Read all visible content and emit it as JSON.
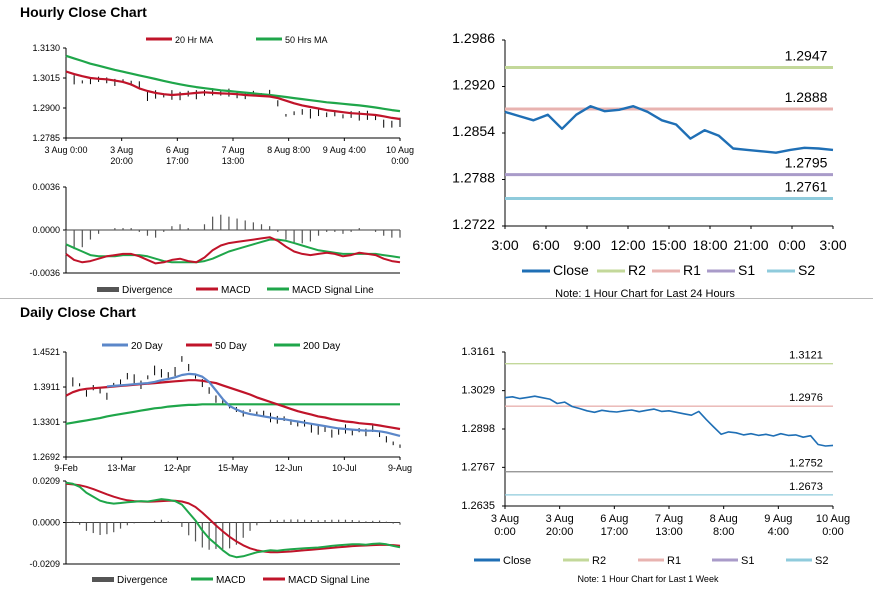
{
  "sections": {
    "hourly_title": "Hourly Close Chart",
    "daily_title": "Daily Close Chart"
  },
  "colors": {
    "close": "#1f6fb5",
    "ma20": "#c0142a",
    "ma50": "#1fa64a",
    "ma200": "#1fa64a",
    "ma20_daily": "#5b87c9",
    "ma50_daily": "#c0142a",
    "r2": "#c3d89a",
    "r1": "#e8b3b0",
    "s1": "#a99bc9",
    "s2": "#8fcbdc",
    "divergence": "#555555"
  },
  "chart_data": [
    {
      "id": "hourly_price",
      "type": "line",
      "title": "",
      "x_ticks": [
        "3 Aug 0:00",
        "3 Aug\n20:00",
        "6 Aug\n17:00",
        "7 Aug\n13:00",
        "8 Aug 8:00",
        "9 Aug 4:00",
        "10 Aug\n0:00"
      ],
      "ylim": [
        1.2785,
        1.313
      ],
      "y_ticks": [
        "1.3130",
        "1.3015",
        "1.2900",
        "1.2785"
      ],
      "series": [
        {
          "name": "Close",
          "values": [
            1.3005,
            1.3008,
            1.3,
            1.3004,
            1.301,
            1.3006,
            1.2998,
            1.3003,
            1.2995,
            1.299,
            1.2945,
            1.2952,
            1.2948,
            1.295,
            1.2946,
            1.2955,
            1.2951,
            1.2958,
            1.2962,
            1.2957,
            1.2959,
            1.295,
            1.2948,
            1.2955,
            1.295,
            1.296,
            1.2918,
            1.2872,
            1.288,
            1.2885,
            1.2878,
            1.2884,
            1.2874,
            1.2879,
            1.2868,
            1.2875,
            1.287,
            1.2872,
            1.2865,
            1.284,
            1.2838,
            1.2845
          ]
        },
        {
          "name": "20 Hr MA",
          "values": [
            1.304,
            1.303,
            1.3022,
            1.3015,
            1.3012,
            1.301,
            1.3005,
            1.3,
            1.299,
            1.2975,
            1.2965,
            1.2958,
            1.2953,
            1.295,
            1.2952,
            1.2955,
            1.2958,
            1.296,
            1.2958,
            1.2956,
            1.2955,
            1.2953,
            1.295,
            1.2948,
            1.2946,
            1.2944,
            1.2938,
            1.2928,
            1.2918,
            1.291,
            1.2904,
            1.2898,
            1.2892,
            1.2888,
            1.2884,
            1.288,
            1.2878,
            1.2876,
            1.2873,
            1.2868,
            1.2862,
            1.2858
          ]
        },
        {
          "name": "50 Hrs MA",
          "values": [
            1.31,
            1.309,
            1.308,
            1.307,
            1.3062,
            1.3054,
            1.3046,
            1.3039,
            1.3032,
            1.3025,
            1.3018,
            1.3011,
            1.3004,
            1.2997,
            1.2991,
            1.2985,
            1.298,
            1.2976,
            1.2972,
            1.2968,
            1.2965,
            1.2962,
            1.2959,
            1.2956,
            1.2953,
            1.295,
            1.2946,
            1.2942,
            1.2938,
            1.2934,
            1.293,
            1.2926,
            1.2922,
            1.2919,
            1.2916,
            1.2913,
            1.291,
            1.2906,
            1.2902,
            1.2897,
            1.2892,
            1.2888
          ]
        }
      ],
      "legend": [
        "20 Hr MA",
        "50 Hrs MA"
      ]
    },
    {
      "id": "hourly_macd",
      "type": "line",
      "ylim": [
        -0.0036,
        0.0036
      ],
      "y_ticks": [
        "0.0036",
        "0.0000",
        "-0.0036"
      ],
      "series": [
        {
          "name": "MACD",
          "values": [
            -0.002,
            -0.0025,
            -0.0027,
            -0.0026,
            -0.0024,
            -0.0022,
            -0.0021,
            -0.002,
            -0.002,
            -0.0022,
            -0.0025,
            -0.0028,
            -0.0027,
            -0.0025,
            -0.0024,
            -0.0026,
            -0.0027,
            -0.0023,
            -0.0017,
            -0.0013,
            -0.0011,
            -0.001,
            -0.0009,
            -0.0008,
            -0.0007,
            -0.0006,
            -0.0009,
            -0.0014,
            -0.0018,
            -0.002,
            -0.0021,
            -0.002,
            -0.0019,
            -0.002,
            -0.0022,
            -0.0021,
            -0.0019,
            -0.002,
            -0.0021,
            -0.0024,
            -0.0026,
            -0.0027
          ]
        },
        {
          "name": "MACD Signal Line",
          "values": [
            -0.0012,
            -0.0015,
            -0.0018,
            -0.0021,
            -0.0022,
            -0.0022,
            -0.0022,
            -0.0021,
            -0.0021,
            -0.0021,
            -0.0022,
            -0.0024,
            -0.0026,
            -0.0027,
            -0.0027,
            -0.0027,
            -0.0027,
            -0.0026,
            -0.0024,
            -0.0021,
            -0.0018,
            -0.0016,
            -0.0014,
            -0.0012,
            -0.001,
            -0.0008,
            -0.0008,
            -0.0009,
            -0.0011,
            -0.0013,
            -0.0015,
            -0.0017,
            -0.0018,
            -0.0019,
            -0.002,
            -0.002,
            -0.002,
            -0.002,
            -0.002,
            -0.0021,
            -0.0022,
            -0.0023
          ]
        }
      ],
      "legend": [
        "Divergence",
        "MACD",
        "MACD Signal Line"
      ]
    },
    {
      "id": "hourly_24h",
      "type": "line",
      "x_ticks": [
        "3:00",
        "6:00",
        "9:00",
        "12:00",
        "15:00",
        "18:00",
        "21:00",
        "0:00",
        "3:00"
      ],
      "ylim": [
        1.2722,
        1.2986
      ],
      "y_ticks": [
        "1.2986",
        "1.2920",
        "1.2854",
        "1.2788",
        "1.2722"
      ],
      "series": [
        {
          "name": "Close",
          "values": [
            1.2884,
            1.2878,
            1.2872,
            1.288,
            1.286,
            1.288,
            1.2892,
            1.2885,
            1.2887,
            1.2892,
            1.2884,
            1.2872,
            1.2866,
            1.2846,
            1.2858,
            1.285,
            1.2832,
            1.283,
            1.2828,
            1.2826,
            1.283,
            1.2833,
            1.2832,
            1.283
          ]
        }
      ],
      "levels": [
        {
          "name": "R2",
          "value": 1.2947,
          "label": "1.2947"
        },
        {
          "name": "R1",
          "value": 1.2888,
          "label": "1.2888"
        },
        {
          "name": "S1",
          "value": 1.2795,
          "label": "1.2795"
        },
        {
          "name": "S2",
          "value": 1.2761,
          "label": "1.2761"
        }
      ],
      "legend": [
        "Close",
        "R2",
        "R1",
        "S1",
        "S2"
      ],
      "note": "Note: 1 Hour Chart for Last 24 Hours"
    },
    {
      "id": "daily_price",
      "type": "line",
      "x_ticks": [
        "9-Feb",
        "13-Mar",
        "12-Apr",
        "15-May",
        "12-Jun",
        "10-Jul",
        "9-Aug"
      ],
      "ylim": [
        1.2692,
        1.4521
      ],
      "y_ticks": [
        "1.4521",
        "1.3911",
        "1.3301",
        "1.2692"
      ],
      "series": [
        {
          "name": "Close",
          "values": [
            1.385,
            1.4,
            1.395,
            1.38,
            1.39,
            1.385,
            1.375,
            1.395,
            1.4,
            1.41,
            1.405,
            1.395,
            1.408,
            1.42,
            1.415,
            1.412,
            1.418,
            1.44,
            1.425,
            1.41,
            1.398,
            1.385,
            1.37,
            1.365,
            1.357,
            1.352,
            1.345,
            1.35,
            1.345,
            1.345,
            1.338,
            1.334,
            1.336,
            1.33,
            1.326,
            1.328,
            1.32,
            1.316,
            1.318,
            1.31,
            1.314,
            1.318,
            1.312,
            1.316,
            1.312,
            1.32,
            1.308,
            1.3,
            1.293,
            1.288
          ]
        },
        {
          "name": "20 Day",
          "values": [
            null,
            null,
            null,
            null,
            null,
            null,
            1.392,
            1.393,
            1.394,
            1.395,
            1.396,
            1.397,
            1.398,
            1.4,
            1.403,
            1.405,
            1.408,
            1.412,
            1.414,
            1.413,
            1.409,
            1.4,
            1.385,
            1.37,
            1.358,
            1.352,
            1.347,
            1.344,
            1.342,
            1.34,
            1.338,
            1.336,
            1.335,
            1.333,
            1.331,
            1.329,
            1.327,
            1.325,
            1.323,
            1.321,
            1.319,
            1.318,
            1.317,
            1.316,
            1.315,
            1.315,
            1.314,
            1.312,
            1.309,
            1.306
          ]
        },
        {
          "name": "50 Day",
          "values": [
            1.376,
            1.382,
            1.386,
            1.388,
            1.389,
            1.39,
            1.391,
            1.392,
            1.393,
            1.394,
            1.395,
            1.396,
            1.397,
            1.398,
            1.399,
            1.4,
            1.401,
            1.402,
            1.403,
            1.403,
            1.402,
            1.4,
            1.398,
            1.394,
            1.39,
            1.386,
            1.382,
            1.378,
            1.373,
            1.369,
            1.365,
            1.361,
            1.357,
            1.353,
            1.349,
            1.346,
            1.343,
            1.34,
            1.338,
            1.335,
            1.333,
            1.331,
            1.33,
            1.328,
            1.327,
            1.326,
            1.324,
            1.322,
            1.32,
            1.318
          ]
        },
        {
          "name": "200 Day",
          "values": [
            1.327,
            1.329,
            1.331,
            1.333,
            1.335,
            1.337,
            1.34,
            1.342,
            1.344,
            1.346,
            1.348,
            1.35,
            1.352,
            1.354,
            1.355,
            1.357,
            1.358,
            1.359,
            1.36,
            1.36,
            1.361,
            1.361,
            1.361,
            1.361,
            1.361,
            1.361,
            1.361,
            1.361,
            1.361,
            1.361,
            1.361,
            1.361,
            1.361,
            1.361,
            1.361,
            1.361,
            1.361,
            1.361,
            1.361,
            1.361,
            1.361,
            1.361,
            1.361,
            1.361,
            1.361,
            1.361,
            1.361,
            1.361,
            1.361,
            1.361
          ]
        }
      ],
      "legend": [
        "20 Day",
        "50 Day",
        "200 Day"
      ]
    },
    {
      "id": "daily_macd",
      "type": "line",
      "ylim": [
        -0.0209,
        0.0209
      ],
      "y_ticks": [
        "0.0209",
        "0.0000",
        "-0.0209"
      ],
      "series": [
        {
          "name": "MACD",
          "values": [
            0.02,
            0.0195,
            0.018,
            0.015,
            0.013,
            0.011,
            0.01,
            0.0095,
            0.0098,
            0.0102,
            0.0105,
            0.0108,
            0.0106,
            0.0112,
            0.0118,
            0.0114,
            0.0108,
            0.009,
            0.005,
            0.001,
            -0.004,
            -0.008,
            -0.011,
            -0.014,
            -0.0165,
            -0.0175,
            -0.017,
            -0.016,
            -0.015,
            -0.0145,
            -0.014,
            -0.0142,
            -0.0138,
            -0.0135,
            -0.0132,
            -0.013,
            -0.0128,
            -0.0126,
            -0.0122,
            -0.0118,
            -0.0115,
            -0.0112,
            -0.011,
            -0.011,
            -0.0112,
            -0.0108,
            -0.0106,
            -0.011,
            -0.0118,
            -0.0125
          ]
        },
        {
          "name": "MACD Signal Line",
          "values": [
            0.0195,
            0.0192,
            0.0188,
            0.018,
            0.0168,
            0.0155,
            0.0142,
            0.013,
            0.012,
            0.0112,
            0.0108,
            0.0106,
            0.0105,
            0.0106,
            0.0108,
            0.011,
            0.011,
            0.0106,
            0.0096,
            0.0078,
            0.005,
            0.0018,
            -0.0015,
            -0.0045,
            -0.0072,
            -0.0095,
            -0.0115,
            -0.013,
            -0.014,
            -0.0146,
            -0.015,
            -0.015,
            -0.0148,
            -0.0146,
            -0.0143,
            -0.014,
            -0.0137,
            -0.0134,
            -0.0131,
            -0.0128,
            -0.0125,
            -0.0122,
            -0.0119,
            -0.0117,
            -0.0116,
            -0.0114,
            -0.0113,
            -0.0113,
            -0.0114,
            -0.0117
          ]
        }
      ],
      "legend": [
        "Divergence",
        "MACD",
        "MACD Signal Line"
      ]
    },
    {
      "id": "daily_week",
      "type": "line",
      "x_ticks": [
        "3 Aug\n0:00",
        "3 Aug\n20:00",
        "6 Aug\n17:00",
        "7 Aug\n13:00",
        "8 Aug\n8:00",
        "9 Aug\n4:00",
        "10 Aug\n0:00"
      ],
      "ylim": [
        1.2635,
        1.3161
      ],
      "y_ticks": [
        "1.3161",
        "1.3029",
        "1.2898",
        "1.2767",
        "1.2635"
      ],
      "series": [
        {
          "name": "Close",
          "values": [
            1.3005,
            1.3008,
            1.3002,
            1.3006,
            1.301,
            1.3005,
            1.3,
            1.2985,
            1.299,
            1.2975,
            1.2968,
            1.296,
            1.2955,
            1.2962,
            1.2958,
            1.2956,
            1.296,
            1.2963,
            1.2957,
            1.2962,
            1.2966,
            1.2958,
            1.296,
            1.2955,
            1.295,
            1.2945,
            1.2958,
            1.293,
            1.2905,
            1.288,
            1.2888,
            1.2885,
            1.2878,
            1.2882,
            1.2876,
            1.288,
            1.2874,
            1.2882,
            1.2876,
            1.2878,
            1.287,
            1.2875,
            1.2845,
            1.284,
            1.2842
          ]
        }
      ],
      "levels": [
        {
          "name": "R2",
          "value": 1.3121,
          "label": "1.3121"
        },
        {
          "name": "R1",
          "value": 1.2976,
          "label": "1.2976"
        },
        {
          "name": "S1",
          "value": 1.2752,
          "label": "1.2752"
        },
        {
          "name": "S2",
          "value": 1.2673,
          "label": "1.2673"
        }
      ],
      "legend": [
        "Close",
        "R2",
        "R1",
        "S1",
        "S2"
      ],
      "note": "Note: 1 Hour Chart for Last 1 Week"
    }
  ]
}
